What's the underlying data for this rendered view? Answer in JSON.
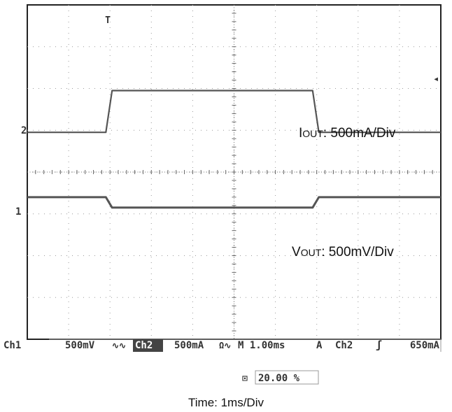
{
  "chart_data": {
    "type": "line",
    "grid": true,
    "x_divisions": 10,
    "y_divisions": 8,
    "series": [
      {
        "channel": "Ch2",
        "annotation_main": "I",
        "annotation_sub": "OUT",
        "annotation_scale": ": 500mA/Div",
        "color": "#555555",
        "x": [
          0,
          1.9,
          2.05,
          6.9,
          7.05,
          10
        ],
        "y": [
          0.95,
          0.95,
          1.95,
          1.95,
          0.95,
          0.95
        ]
      },
      {
        "channel": "Ch1",
        "annotation_main": "V",
        "annotation_sub": "OUT",
        "annotation_scale": ": 500mV/Div",
        "color": "#555555",
        "x": [
          0,
          1.9,
          2.05,
          6.9,
          7.05,
          10
        ],
        "y": [
          -0.6,
          -0.6,
          -0.85,
          -0.85,
          -0.6,
          -0.6
        ]
      }
    ],
    "markers": {
      "trigger_time": "T",
      "ch2_ref": "2",
      "ch1_ref": "1",
      "trigger_level": "◂"
    },
    "status_bar": {
      "ch1_label": "Ch1",
      "ch1_scale": "500mV",
      "ch1_coupling": "∿∿",
      "ch2_label": "Ch2",
      "ch2_scale": "500mA",
      "ch2_coupling": "Ω∿",
      "timebase": "M 1.00ms",
      "trigger_mode": "A",
      "trigger_source": "Ch2",
      "trigger_slope": "ʃ",
      "trigger_level": "650mA",
      "position_icon": "⊡",
      "position": "20.00 %"
    },
    "xlabel": "Time: 1ms/Div"
  }
}
